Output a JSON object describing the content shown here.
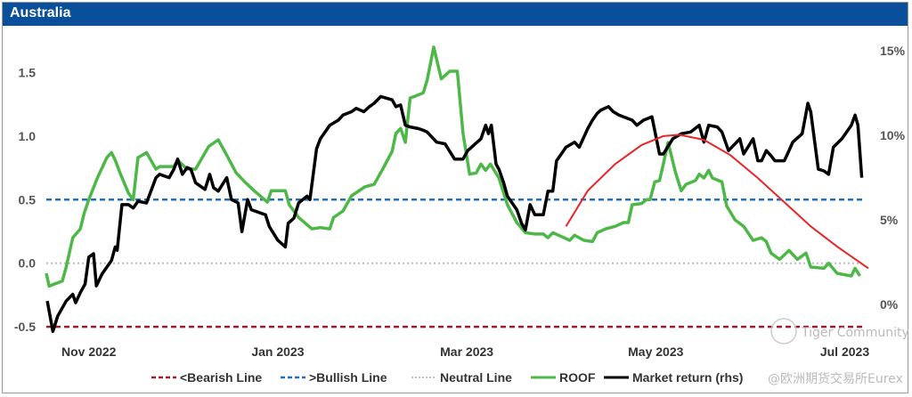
{
  "title": "Australia",
  "watermark": {
    "line1": "Tiger Community",
    "line2": "@欧洲期货交易所Eurex"
  },
  "colors": {
    "header": "#0a4f9c",
    "bearish": "#a01c2c",
    "bullish": "#1f6fc0",
    "neutral": "#bdbdbd",
    "roof": "#4db848",
    "market": "#000000",
    "trend": "#e8262a"
  },
  "chart_data": {
    "type": "line",
    "title": "Australia",
    "x_unit": "months since 1 Nov 2022",
    "xlim": [
      -0.45,
      8.25
    ],
    "x_ticks": [
      {
        "x": 0,
        "label": "Nov 2022"
      },
      {
        "x": 2,
        "label": "Jan 2023"
      },
      {
        "x": 4,
        "label": "Mar 2023"
      },
      {
        "x": 6,
        "label": "May 2023"
      },
      {
        "x": 8,
        "label": "Jul 2023"
      }
    ],
    "y_left": {
      "ylim": [
        -0.59,
        1.79
      ],
      "ticks": [
        {
          "v": 1.5,
          "label": "1.5"
        },
        {
          "v": 1.0,
          "label": "1.0"
        },
        {
          "v": 0.5,
          "label": "0.5"
        },
        {
          "v": 0.0,
          "label": "0.0"
        },
        {
          "v": -0.5,
          "label": "-0.5"
        }
      ]
    },
    "y_right": {
      "ylim": [
        -2.0,
        15.9
      ],
      "ticks": [
        {
          "v": 15,
          "label": "15%"
        },
        {
          "v": 10,
          "label": "10%"
        },
        {
          "v": 5,
          "label": "5%"
        },
        {
          "v": 0,
          "label": "0%"
        }
      ]
    },
    "hlines": [
      {
        "name": "<Bearish Line",
        "value": -0.5,
        "style": "dashed",
        "color": "#a01c2c"
      },
      {
        "name": ">Bullish Line",
        "value": 0.5,
        "style": "dashed",
        "color": "#1f6fc0"
      },
      {
        "name": "Neutral Line",
        "value": 0.0,
        "style": "dotted",
        "color": "#bdbdbd"
      }
    ],
    "series": [
      {
        "name": "ROOF",
        "axis": "left",
        "color": "#4db848",
        "points": [
          [
            -0.45,
            -0.08
          ],
          [
            -0.42,
            -0.18
          ],
          [
            -0.28,
            -0.14
          ],
          [
            -0.24,
            -0.03
          ],
          [
            -0.17,
            0.2
          ],
          [
            -0.09,
            0.27
          ],
          [
            -0.05,
            0.39
          ],
          [
            0,
            0.5
          ],
          [
            0.09,
            0.67
          ],
          [
            0.19,
            0.83
          ],
          [
            0.24,
            0.87
          ],
          [
            0.28,
            0.81
          ],
          [
            0.33,
            0.71
          ],
          [
            0.38,
            0.62
          ],
          [
            0.42,
            0.55
          ],
          [
            0.47,
            0.5
          ],
          [
            0.52,
            0.83
          ],
          [
            0.61,
            0.87
          ],
          [
            0.71,
            0.74
          ],
          [
            0.75,
            0.76
          ],
          [
            0.9,
            0.76
          ],
          [
            0.94,
            0.81
          ],
          [
            1.04,
            0.74
          ],
          [
            1.13,
            0.74
          ],
          [
            1.27,
            0.92
          ],
          [
            1.37,
            0.97
          ],
          [
            1.46,
            0.85
          ],
          [
            1.56,
            0.71
          ],
          [
            1.65,
            0.64
          ],
          [
            1.75,
            0.57
          ],
          [
            1.89,
            0.48
          ],
          [
            1.93,
            0.57
          ],
          [
            2.08,
            0.57
          ],
          [
            2.12,
            0.46
          ],
          [
            2.22,
            0.36
          ],
          [
            2.36,
            0.27
          ],
          [
            2.45,
            0.28
          ],
          [
            2.55,
            0.27
          ],
          [
            2.59,
            0.36
          ],
          [
            2.69,
            0.41
          ],
          [
            2.78,
            0.53
          ],
          [
            2.92,
            0.6
          ],
          [
            3.02,
            0.62
          ],
          [
            3.11,
            0.74
          ],
          [
            3.21,
            0.88
          ],
          [
            3.25,
            1.02
          ],
          [
            3.3,
            1.06
          ],
          [
            3.35,
            0.95
          ],
          [
            3.4,
            1.3
          ],
          [
            3.44,
            1.31
          ],
          [
            3.54,
            1.34
          ],
          [
            3.58,
            1.44
          ],
          [
            3.65,
            1.7
          ],
          [
            3.73,
            1.45
          ],
          [
            3.82,
            1.51
          ],
          [
            3.9,
            1.51
          ],
          [
            3.96,
            1.02
          ],
          [
            4.03,
            0.7
          ],
          [
            4.1,
            0.71
          ],
          [
            4.15,
            0.78
          ],
          [
            4.2,
            0.73
          ],
          [
            4.25,
            0.78
          ],
          [
            4.34,
            0.67
          ],
          [
            4.43,
            0.46
          ],
          [
            4.53,
            0.32
          ],
          [
            4.62,
            0.24
          ],
          [
            4.72,
            0.23
          ],
          [
            4.81,
            0.23
          ],
          [
            4.86,
            0.2
          ],
          [
            4.91,
            0.24
          ],
          [
            5.0,
            0.21
          ],
          [
            5.09,
            0.18
          ],
          [
            5.14,
            0.22
          ],
          [
            5.24,
            0.18
          ],
          [
            5.33,
            0.17
          ],
          [
            5.38,
            0.24
          ],
          [
            5.47,
            0.27
          ],
          [
            5.57,
            0.29
          ],
          [
            5.66,
            0.32
          ],
          [
            5.71,
            0.32
          ],
          [
            5.75,
            0.46
          ],
          [
            5.85,
            0.47
          ],
          [
            5.9,
            0.5
          ],
          [
            5.94,
            0.5
          ],
          [
            5.99,
            0.64
          ],
          [
            6.04,
            0.65
          ],
          [
            6.08,
            0.78
          ],
          [
            6.13,
            0.95
          ],
          [
            6.21,
            0.71
          ],
          [
            6.27,
            0.57
          ],
          [
            6.32,
            0.62
          ],
          [
            6.42,
            0.65
          ],
          [
            6.46,
            0.7
          ],
          [
            6.51,
            0.67
          ],
          [
            6.56,
            0.73
          ],
          [
            6.6,
            0.67
          ],
          [
            6.7,
            0.64
          ],
          [
            6.75,
            0.45
          ],
          [
            6.84,
            0.34
          ],
          [
            6.93,
            0.29
          ],
          [
            7.03,
            0.18
          ],
          [
            7.12,
            0.2
          ],
          [
            7.17,
            0.17
          ],
          [
            7.22,
            0.08
          ],
          [
            7.31,
            0.03
          ],
          [
            7.41,
            0.1
          ],
          [
            7.5,
            0.03
          ],
          [
            7.59,
            0.08
          ],
          [
            7.64,
            -0.03
          ],
          [
            7.78,
            -0.04
          ],
          [
            7.83,
            0.0
          ],
          [
            7.92,
            -0.08
          ],
          [
            8.07,
            -0.1
          ],
          [
            8.11,
            -0.04
          ],
          [
            8.16,
            -0.1
          ]
        ]
      },
      {
        "name": "Market return (rhs)",
        "axis": "right",
        "color": "#000000",
        "points": [
          [
            -0.44,
            0.2
          ],
          [
            -0.38,
            -1.6
          ],
          [
            -0.33,
            -0.7
          ],
          [
            -0.28,
            -0.2
          ],
          [
            -0.24,
            0.2
          ],
          [
            -0.17,
            0.6
          ],
          [
            -0.14,
            0.1
          ],
          [
            -0.09,
            0.7
          ],
          [
            -0.04,
            1.2
          ],
          [
            0,
            2.8
          ],
          [
            0.05,
            3.0
          ],
          [
            0.08,
            1.1
          ],
          [
            0.14,
            1.8
          ],
          [
            0.24,
            2.6
          ],
          [
            0.28,
            3.4
          ],
          [
            0.3,
            3.2
          ],
          [
            0.35,
            5.9
          ],
          [
            0.42,
            5.9
          ],
          [
            0.47,
            5.7
          ],
          [
            0.52,
            6.1
          ],
          [
            0.61,
            6.0
          ],
          [
            0.71,
            7.5
          ],
          [
            0.75,
            7.7
          ],
          [
            0.85,
            7.5
          ],
          [
            0.9,
            8.0
          ],
          [
            0.94,
            8.6
          ],
          [
            0.99,
            7.7
          ],
          [
            1.04,
            8.1
          ],
          [
            1.08,
            8.0
          ],
          [
            1.13,
            7.2
          ],
          [
            1.23,
            6.8
          ],
          [
            1.28,
            7.7
          ],
          [
            1.32,
            6.9
          ],
          [
            1.37,
            6.7
          ],
          [
            1.46,
            7.5
          ],
          [
            1.51,
            6.2
          ],
          [
            1.58,
            6.0
          ],
          [
            1.62,
            4.3
          ],
          [
            1.68,
            6.2
          ],
          [
            1.72,
            5.6
          ],
          [
            1.87,
            5.3
          ],
          [
            1.91,
            4.6
          ],
          [
            2.0,
            3.8
          ],
          [
            2.08,
            3.4
          ],
          [
            2.11,
            4.8
          ],
          [
            2.17,
            5.1
          ],
          [
            2.22,
            6.0
          ],
          [
            2.31,
            6.4
          ],
          [
            2.34,
            6.2
          ],
          [
            2.41,
            9.2
          ],
          [
            2.45,
            9.8
          ],
          [
            2.55,
            10.6
          ],
          [
            2.64,
            10.9
          ],
          [
            2.69,
            11.2
          ],
          [
            2.78,
            11.4
          ],
          [
            2.83,
            11.6
          ],
          [
            2.91,
            11.4
          ],
          [
            2.97,
            11.7
          ],
          [
            3.02,
            11.9
          ],
          [
            3.09,
            12.3
          ],
          [
            3.21,
            12.1
          ],
          [
            3.25,
            11.7
          ],
          [
            3.3,
            11.8
          ],
          [
            3.35,
            10.6
          ],
          [
            3.4,
            10.5
          ],
          [
            3.49,
            10.4
          ],
          [
            3.54,
            10.3
          ],
          [
            3.58,
            10.2
          ],
          [
            3.68,
            9.6
          ],
          [
            3.77,
            9.5
          ],
          [
            3.87,
            8.6
          ],
          [
            3.96,
            8.6
          ],
          [
            4.01,
            9.1
          ],
          [
            4.15,
            9.8
          ],
          [
            4.2,
            10.6
          ],
          [
            4.23,
            10.1
          ],
          [
            4.26,
            10.6
          ],
          [
            4.31,
            8.3
          ],
          [
            4.34,
            8.0
          ],
          [
            4.39,
            7.2
          ],
          [
            4.43,
            6.4
          ],
          [
            4.53,
            5.6
          ],
          [
            4.58,
            4.8
          ],
          [
            4.62,
            4.4
          ],
          [
            4.67,
            5.9
          ],
          [
            4.72,
            5.3
          ],
          [
            4.81,
            5.3
          ],
          [
            4.86,
            6.7
          ],
          [
            4.91,
            6.7
          ],
          [
            4.95,
            8.5
          ],
          [
            5.05,
            9.3
          ],
          [
            5.14,
            9.6
          ],
          [
            5.19,
            9.3
          ],
          [
            5.28,
            10.4
          ],
          [
            5.33,
            10.9
          ],
          [
            5.38,
            11.3
          ],
          [
            5.42,
            11.5
          ],
          [
            5.5,
            11.7
          ],
          [
            5.55,
            11.4
          ],
          [
            5.61,
            11.2
          ],
          [
            5.75,
            10.9
          ],
          [
            5.8,
            10.6
          ],
          [
            5.87,
            10.9
          ],
          [
            5.96,
            11.1
          ],
          [
            6.04,
            8.9
          ],
          [
            6.08,
            8.9
          ],
          [
            6.18,
            9.8
          ],
          [
            6.27,
            10.1
          ],
          [
            6.37,
            10.2
          ],
          [
            6.46,
            10.6
          ],
          [
            6.51,
            9.6
          ],
          [
            6.56,
            10.6
          ],
          [
            6.65,
            10.5
          ],
          [
            6.7,
            10.2
          ],
          [
            6.77,
            9.1
          ],
          [
            6.89,
            9.8
          ],
          [
            6.93,
            8.9
          ],
          [
            7.03,
            9.8
          ],
          [
            7.08,
            8.5
          ],
          [
            7.12,
            8.5
          ],
          [
            7.17,
            9.1
          ],
          [
            7.22,
            8.8
          ],
          [
            7.26,
            8.5
          ],
          [
            7.36,
            8.5
          ],
          [
            7.41,
            9.1
          ],
          [
            7.45,
            9.6
          ],
          [
            7.55,
            10.1
          ],
          [
            7.61,
            11.9
          ],
          [
            7.64,
            11.4
          ],
          [
            7.72,
            8.0
          ],
          [
            7.78,
            7.9
          ],
          [
            7.83,
            7.7
          ],
          [
            7.88,
            9.3
          ],
          [
            7.97,
            9.8
          ],
          [
            8.07,
            10.6
          ],
          [
            8.11,
            11.2
          ],
          [
            8.14,
            10.6
          ],
          [
            8.18,
            7.5
          ]
        ]
      }
    ],
    "annotation_curve": {
      "axis": "left",
      "color": "#e8262a",
      "points": [
        [
          5.05,
          0.29
        ],
        [
          5.28,
          0.57
        ],
        [
          5.57,
          0.78
        ],
        [
          5.85,
          0.93
        ],
        [
          6.08,
          1.0
        ],
        [
          6.25,
          1.01
        ],
        [
          6.51,
          0.97
        ],
        [
          6.79,
          0.85
        ],
        [
          7.08,
          0.67
        ],
        [
          7.36,
          0.48
        ],
        [
          7.64,
          0.29
        ],
        [
          7.92,
          0.13
        ],
        [
          8.25,
          -0.04
        ]
      ]
    },
    "legend": {
      "placement": "bottom",
      "items": [
        "<Bearish Line",
        ">Bullish Line",
        "Neutral Line",
        "ROOF",
        "Market return (rhs)"
      ]
    }
  }
}
